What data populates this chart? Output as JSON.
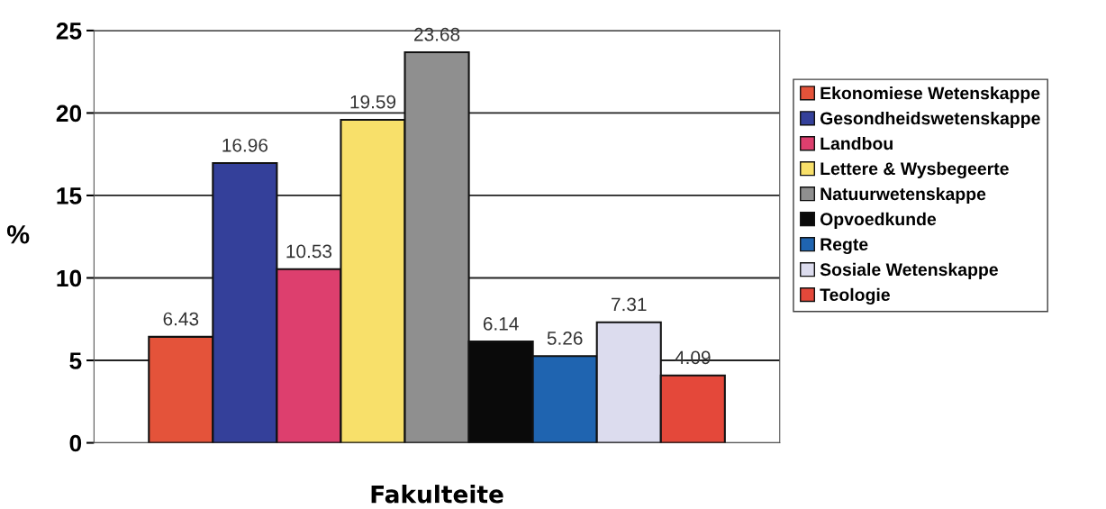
{
  "chart_data": {
    "type": "bar",
    "xlabel": "Fakulteite",
    "ylabel": "%",
    "categories": [
      null
    ],
    "series": [
      {
        "name": "Ekonomiese Wetenskappe",
        "color": "#e4533a",
        "values": [
          6.43
        ]
      },
      {
        "name": "Gesondheidswetenskappe",
        "color": "#34409a",
        "values": [
          16.96
        ]
      },
      {
        "name": "Landbou",
        "color": "#dd3f6e",
        "values": [
          10.53
        ]
      },
      {
        "name": "Lettere & Wysbegeerte",
        "color": "#f8e06a",
        "values": [
          19.59
        ]
      },
      {
        "name": "Natuurwetenskappe",
        "color": "#8f8f8f",
        "values": [
          23.68
        ]
      },
      {
        "name": "Opvoedkunde",
        "color": "#0a0a0a",
        "values": [
          6.14
        ]
      },
      {
        "name": "Regte",
        "color": "#1f64b0",
        "values": [
          5.26
        ]
      },
      {
        "name": "Sosiale Wetenskappe",
        "color": "#dcdcee",
        "values": [
          7.31
        ]
      },
      {
        "name": "Teologie",
        "color": "#e4483a",
        "values": [
          4.09
        ]
      }
    ],
    "ylim": [
      0,
      25
    ],
    "yticks": [
      0,
      5,
      10,
      15,
      20,
      25
    ],
    "grid": "y",
    "legend": "right",
    "data_labels": true
  }
}
